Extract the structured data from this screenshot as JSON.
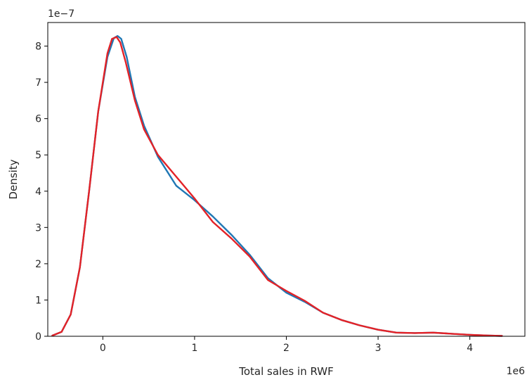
{
  "chart_data": {
    "type": "line",
    "title": "",
    "xlabel": "Total sales in RWF",
    "ylabel": "Density",
    "x_offset_label": "1e6",
    "y_offset_label": "1e−7",
    "xlim": [
      -0.6,
      4.6
    ],
    "ylim": [
      0,
      8.65
    ],
    "x_ticks": [
      0,
      1,
      2,
      3,
      4
    ],
    "y_ticks": [
      0,
      1,
      2,
      3,
      4,
      5,
      6,
      7,
      8
    ],
    "grid": false,
    "legend": "none",
    "series": [
      {
        "color": "#1f77b4",
        "x": [
          -0.55,
          -0.45,
          -0.35,
          -0.25,
          -0.15,
          -0.05,
          0.05,
          0.12,
          0.16,
          0.2,
          0.26,
          0.35,
          0.45,
          0.6,
          0.8,
          1.0,
          1.2,
          1.4,
          1.6,
          1.8,
          2.0,
          2.2,
          2.4,
          2.6,
          2.8,
          3.0,
          3.2,
          3.4,
          3.6,
          3.8,
          4.0,
          4.2,
          4.35
        ],
        "y": [
          0.02,
          0.12,
          0.6,
          1.9,
          4.0,
          6.2,
          7.7,
          8.22,
          8.28,
          8.2,
          7.7,
          6.6,
          5.8,
          4.95,
          4.15,
          3.75,
          3.3,
          2.8,
          2.25,
          1.6,
          1.2,
          0.95,
          0.65,
          0.45,
          0.3,
          0.18,
          0.1,
          0.09,
          0.1,
          0.07,
          0.04,
          0.02,
          0.01
        ]
      },
      {
        "color": "#e32227",
        "x": [
          -0.55,
          -0.45,
          -0.35,
          -0.25,
          -0.15,
          -0.05,
          0.05,
          0.1,
          0.15,
          0.19,
          0.25,
          0.35,
          0.45,
          0.6,
          0.8,
          1.0,
          1.2,
          1.4,
          1.6,
          1.8,
          2.0,
          2.2,
          2.4,
          2.6,
          2.8,
          3.0,
          3.2,
          3.4,
          3.6,
          3.8,
          4.0,
          4.2,
          4.35
        ],
        "y": [
          0.02,
          0.12,
          0.6,
          1.9,
          4.0,
          6.2,
          7.8,
          8.2,
          8.25,
          8.1,
          7.55,
          6.5,
          5.7,
          5.0,
          4.4,
          3.8,
          3.15,
          2.7,
          2.2,
          1.55,
          1.25,
          0.98,
          0.65,
          0.45,
          0.3,
          0.18,
          0.1,
          0.09,
          0.1,
          0.07,
          0.04,
          0.02,
          0.01
        ]
      }
    ]
  }
}
